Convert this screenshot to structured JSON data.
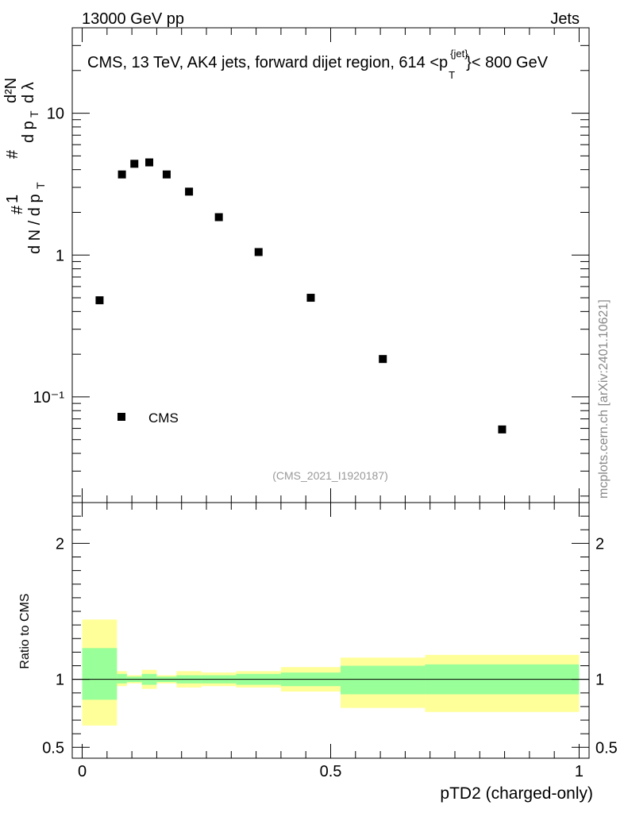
{
  "header": {
    "energy_label": "13000 GeV pp",
    "process_label": "Jets",
    "plot_title": "CMS, 13 TeV, AK4 jets, forward dijet region, 614 <p",
    "plot_title_sup": "{jet}",
    "plot_title_sub": "T",
    "plot_title_end": "}< 800 GeV",
    "analysis_id": "(CMS_2021_I1920187)",
    "side_credit": "mcplots.cern.ch [arXiv:2401.10621]"
  },
  "chart_data": [
    {
      "type": "scatter",
      "title": "CMS, 13 TeV, AK4 jets, forward dijet region, 614 <p_T^{jet}< 800 GeV",
      "ylabel": "1/(dN/dpT) d²N/(dpT dλ)",
      "yscale": "log",
      "ylim": [
        0.018,
        40
      ],
      "xlim": [
        -0.02,
        1.02
      ],
      "series": [
        {
          "name": "CMS",
          "marker": "square",
          "x": [
            0.035,
            0.08,
            0.105,
            0.135,
            0.17,
            0.215,
            0.275,
            0.355,
            0.46,
            0.605,
            0.845
          ],
          "y": [
            0.48,
            3.7,
            4.4,
            4.5,
            3.7,
            2.8,
            1.85,
            1.05,
            0.5,
            0.185,
            0.059
          ]
        }
      ],
      "yticks": [
        {
          "value": 10,
          "label": "10"
        },
        {
          "value": 1,
          "label": "1"
        },
        {
          "value": 0.1,
          "label": "10⁻¹"
        }
      ],
      "legend": {
        "position": "bottom-left",
        "entries": [
          "CMS"
        ]
      }
    },
    {
      "type": "area",
      "ylabel": "Ratio to CMS",
      "xlabel": "pTD2 (charged-only)",
      "ylim": [
        0.42,
        2.3
      ],
      "xlim": [
        -0.02,
        1.02
      ],
      "reference_line": 1,
      "yticks": [
        {
          "value": 2,
          "label": "2"
        },
        {
          "value": 1,
          "label": "1"
        },
        {
          "value": 0.5,
          "label": "0.5"
        }
      ],
      "xticks": [
        {
          "value": 0,
          "label": "0"
        },
        {
          "value": 0.5,
          "label": "0.5"
        },
        {
          "value": 1,
          "label": "1"
        }
      ],
      "bands": [
        {
          "x0": 0.0,
          "x1": 0.07,
          "inner": [
            0.85,
            1.23
          ],
          "outer": [
            0.66,
            1.44
          ]
        },
        {
          "x0": 0.07,
          "x1": 0.09,
          "inner": [
            0.97,
            1.04
          ],
          "outer": [
            0.95,
            1.06
          ]
        },
        {
          "x0": 0.09,
          "x1": 0.12,
          "inner": [
            0.98,
            1.02
          ],
          "outer": [
            0.97,
            1.03
          ]
        },
        {
          "x0": 0.12,
          "x1": 0.15,
          "inner": [
            0.96,
            1.04
          ],
          "outer": [
            0.93,
            1.07
          ]
        },
        {
          "x0": 0.15,
          "x1": 0.19,
          "inner": [
            0.98,
            1.02
          ],
          "outer": [
            0.97,
            1.03
          ]
        },
        {
          "x0": 0.19,
          "x1": 0.24,
          "inner": [
            0.97,
            1.03
          ],
          "outer": [
            0.94,
            1.06
          ]
        },
        {
          "x0": 0.24,
          "x1": 0.31,
          "inner": [
            0.97,
            1.03
          ],
          "outer": [
            0.95,
            1.05
          ]
        },
        {
          "x0": 0.31,
          "x1": 0.4,
          "inner": [
            0.96,
            1.04
          ],
          "outer": [
            0.94,
            1.06
          ]
        },
        {
          "x0": 0.4,
          "x1": 0.52,
          "inner": [
            0.95,
            1.05
          ],
          "outer": [
            0.91,
            1.09
          ]
        },
        {
          "x0": 0.52,
          "x1": 0.69,
          "inner": [
            0.89,
            1.1
          ],
          "outer": [
            0.79,
            1.16
          ]
        },
        {
          "x0": 0.69,
          "x1": 1.0,
          "inner": [
            0.89,
            1.11
          ],
          "outer": [
            0.76,
            1.18
          ]
        }
      ]
    }
  ],
  "colors": {
    "inner_band": "#99ff99",
    "outer_band": "#ffff99",
    "marker": "#000000",
    "credit": "#888888"
  }
}
